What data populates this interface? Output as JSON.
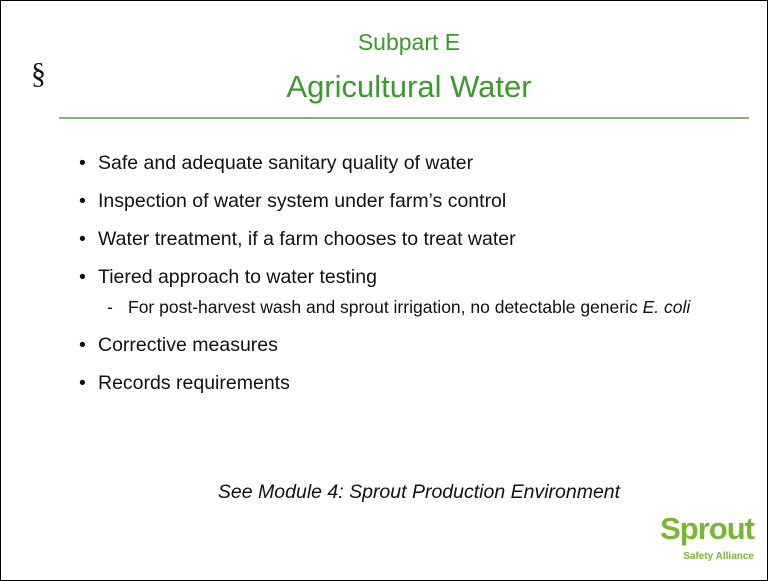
{
  "header": {
    "section_symbol": "§",
    "subtitle": "Subpart E",
    "title": "Agricultural Water"
  },
  "bullets": [
    {
      "text": "Safe and adequate sanitary quality of water"
    },
    {
      "text": "Inspection of water system under farm’s control"
    },
    {
      "text": "Water treatment, if a farm chooses to treat water"
    },
    {
      "text": "Tiered approach to water testing",
      "sub": {
        "text": "For post-harvest wash and sprout irrigation, no detectable generic",
        "italic": "E. coli"
      }
    },
    {
      "text": "Corrective measures"
    },
    {
      "text": "Records requirements"
    }
  ],
  "footer": {
    "note": "See Module 4: Sprout Production Environment"
  },
  "logo": {
    "name": "Sprout",
    "tagline": "Safety Alliance"
  }
}
